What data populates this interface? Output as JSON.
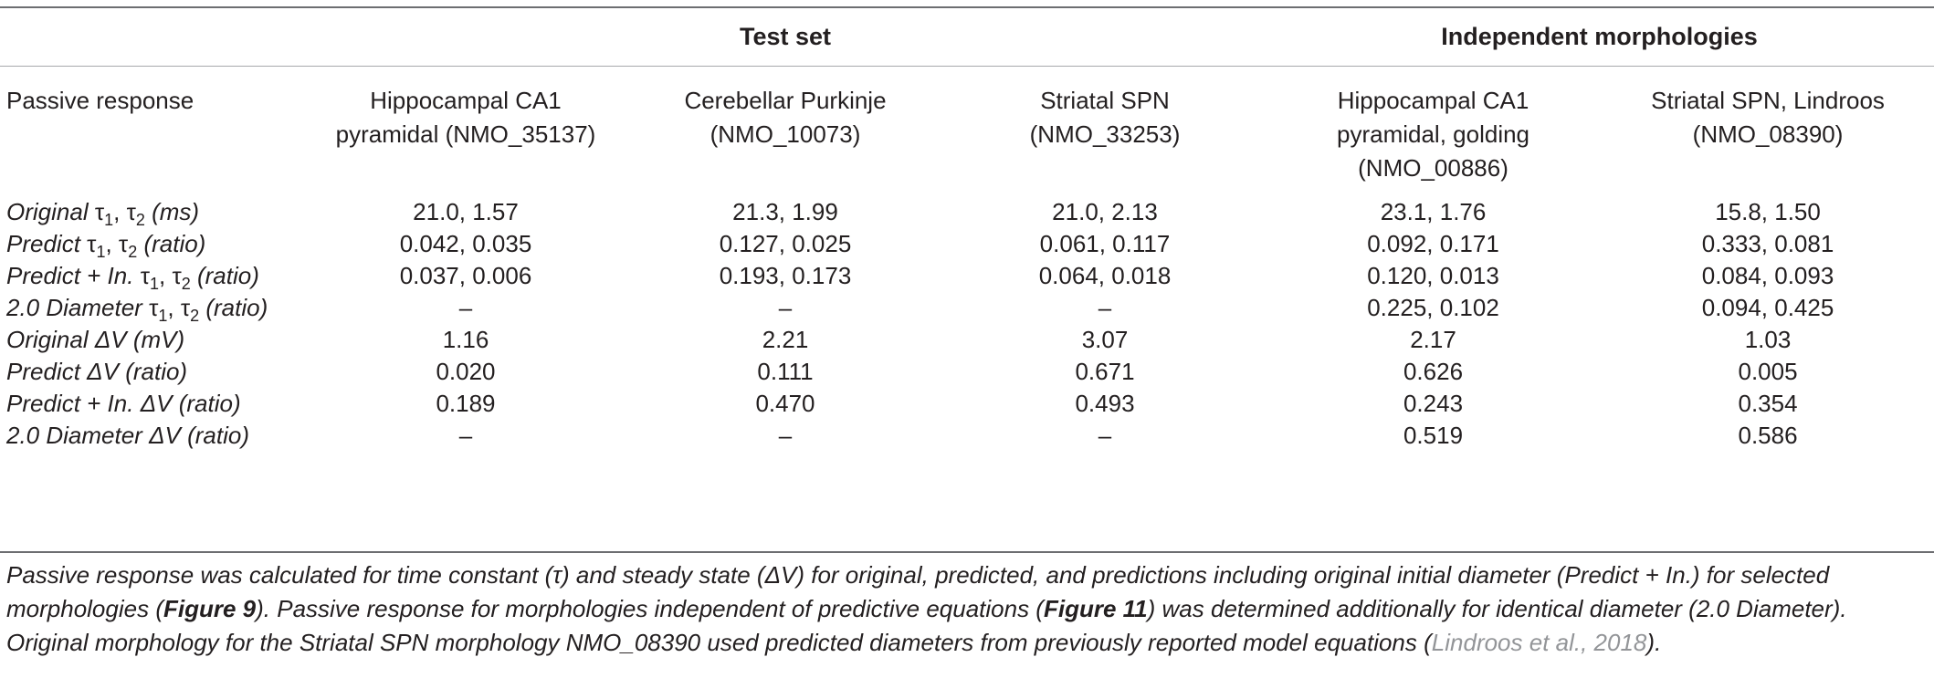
{
  "table": {
    "groups": {
      "test_set": "Test set",
      "independent": "Independent morphologies"
    },
    "header": {
      "first": "Passive response",
      "columns": [
        [
          "Hippocampal CA1",
          "pyramidal (NMO_35137)"
        ],
        [
          "Cerebellar Purkinje",
          "(NMO_10073)"
        ],
        [
          "Striatal SPN",
          "(NMO_33253)"
        ],
        [
          "Hippocampal CA1",
          "pyramidal, golding",
          "(NMO_00886)"
        ],
        [
          "Striatal SPN, Lindroos",
          "(NMO_08390)"
        ]
      ]
    },
    "rows": [
      {
        "pre": "Original",
        "tau": true,
        "post": "(ms)",
        "values": [
          "21.0, 1.57",
          "21.3, 1.99",
          "21.0, 2.13",
          "23.1, 1.76",
          "15.8, 1.50"
        ]
      },
      {
        "pre": "Predict",
        "tau": true,
        "post": "(ratio)",
        "values": [
          "0.042, 0.035",
          "0.127, 0.025",
          "0.061, 0.117",
          "0.092, 0.171",
          "0.333, 0.081"
        ]
      },
      {
        "pre": "Predict + In.",
        "tau": true,
        "post": "(ratio)",
        "values": [
          "0.037, 0.006",
          "0.193, 0.173",
          "0.064, 0.018",
          "0.120, 0.013",
          "0.084, 0.093"
        ]
      },
      {
        "pre": "2.0 Diameter",
        "tau": true,
        "post": "(ratio)",
        "values": [
          "–",
          "–",
          "–",
          "0.225, 0.102",
          "0.094, 0.425"
        ]
      },
      {
        "pre": "Original",
        "tau": false,
        "post": "(mV)",
        "values": [
          "1.16",
          "2.21",
          "3.07",
          "2.17",
          "1.03"
        ]
      },
      {
        "pre": "Predict",
        "tau": false,
        "post": "(ratio)",
        "values": [
          "0.020",
          "0.111",
          "0.671",
          "0.626",
          "0.005"
        ]
      },
      {
        "pre": "Predict + In.",
        "tau": false,
        "post": "(ratio)",
        "values": [
          "0.189",
          "0.470",
          "0.493",
          "0.243",
          "0.354"
        ]
      },
      {
        "pre": "2.0 Diameter",
        "tau": false,
        "post": "(ratio)",
        "values": [
          "–",
          "–",
          "–",
          "0.519",
          "0.586"
        ]
      }
    ],
    "symbols": {
      "tau": "τ",
      "sub1": "1",
      "sub2": "2",
      "delta_v": "ΔV"
    }
  },
  "caption": {
    "part1": "Passive response was calculated for time constant (τ) and steady state (ΔV) for original, predicted, and predictions including original initial diameter (Predict + In.) for selected morphologies (",
    "fig1": "Figure 9",
    "part2": "). Passive response for morphologies independent of predictive equations (",
    "fig2": "Figure 11",
    "part3": ") was determined additionally for identical diameter (2.0 Diameter). Original morphology for the Striatal SPN morphology NMO_08390 used predicted diameters from previously reported model equations (",
    "ref": "Lindroos et al., 2018",
    "part4": ")."
  }
}
